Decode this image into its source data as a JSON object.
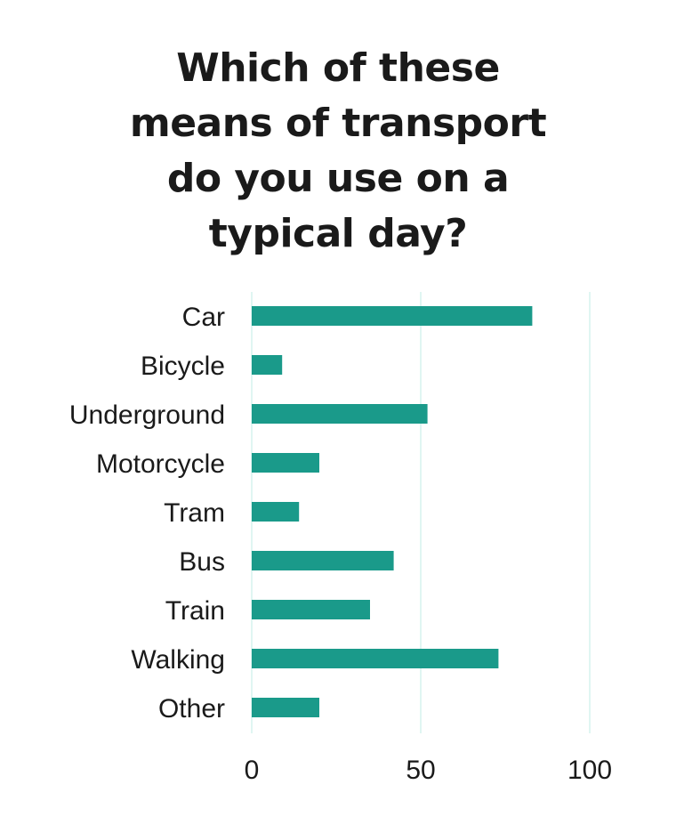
{
  "title_lines": [
    "Which of these",
    "means of transport",
    "do you use on a",
    "typical day?"
  ],
  "colors": {
    "bar": "#1a9a8a",
    "grid": "#d6f3ee",
    "text": "#1a1a1a"
  },
  "chart_data": {
    "type": "bar",
    "orientation": "horizontal",
    "title": "Which of these means of transport do you use on a typical day?",
    "categories": [
      "Car",
      "Bicycle",
      "Underground",
      "Motorcycle",
      "Tram",
      "Bus",
      "Train",
      "Walking",
      "Other"
    ],
    "values": [
      83,
      9,
      52,
      20,
      14,
      42,
      35,
      73,
      20
    ],
    "xlim": [
      0,
      100
    ],
    "xticks": [
      0,
      50,
      100
    ],
    "grid": "vertical",
    "xlabel": "",
    "ylabel": ""
  }
}
